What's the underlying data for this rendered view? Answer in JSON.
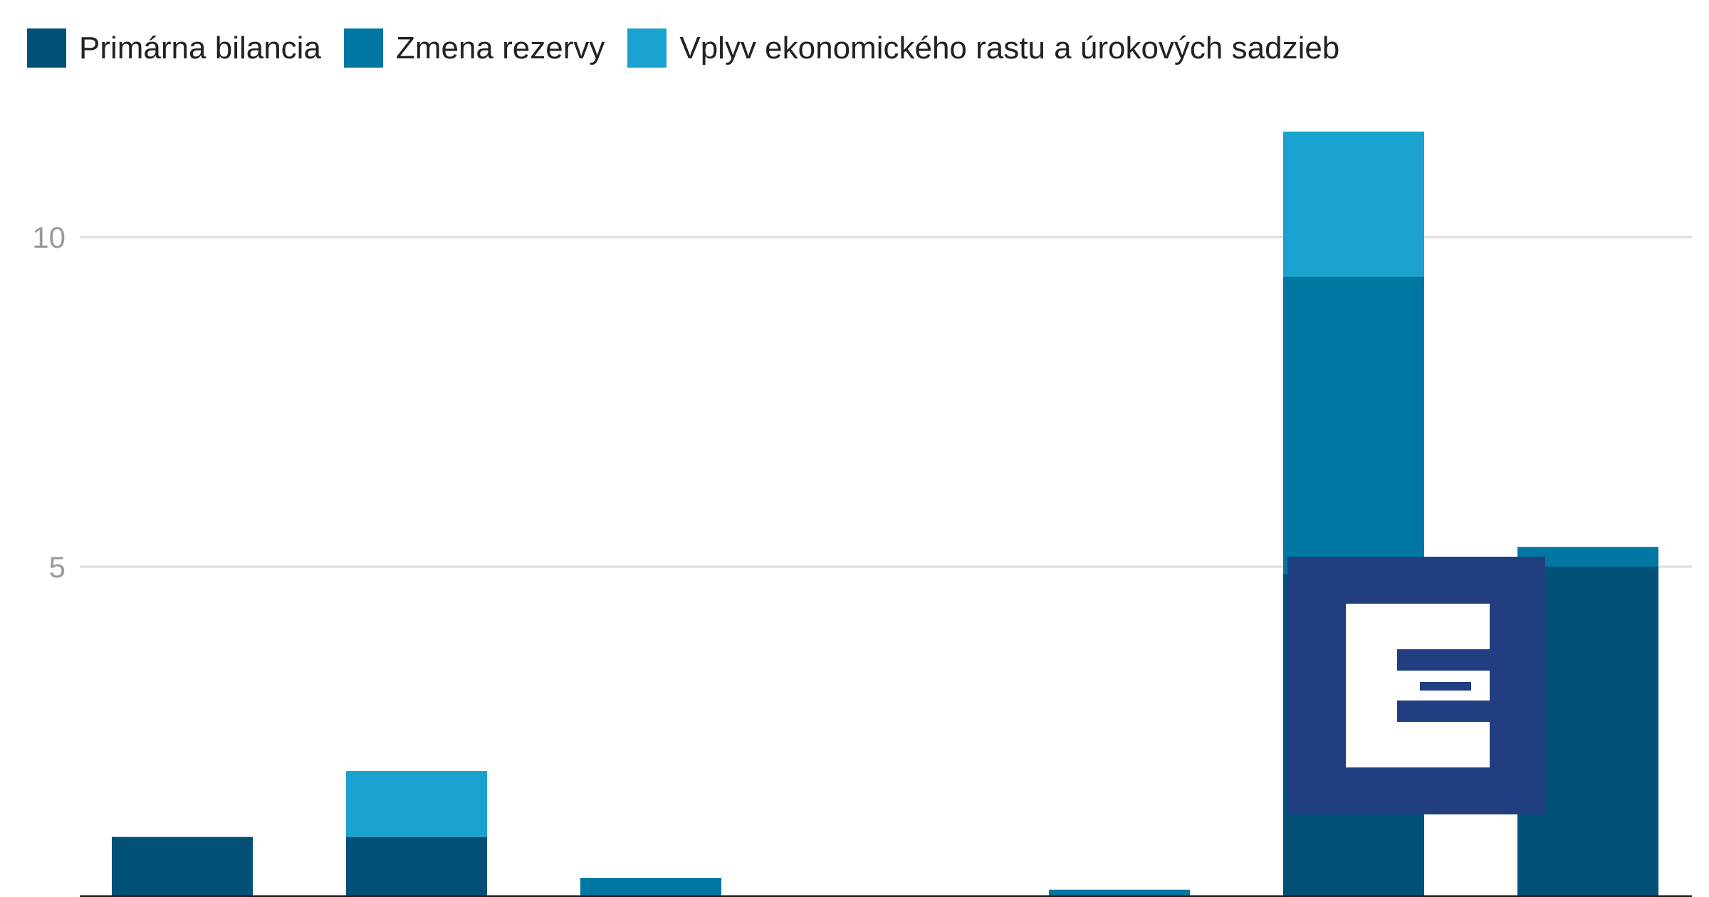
{
  "chart_data": {
    "type": "bar",
    "stacked": true,
    "categories": [
      "",
      "",
      "",
      "",
      "",
      "",
      ""
    ],
    "series": [
      {
        "name": "Primárna bilancia",
        "color": "#005078",
        "values": [
          0.9,
          0.9,
          0.0,
          -0.05,
          0.0,
          4.9,
          5.0
        ]
      },
      {
        "name": "Zmena rezervy",
        "color": "#0077a3",
        "values": [
          0.0,
          0.0,
          0.28,
          0.0,
          0.1,
          4.5,
          0.3
        ]
      },
      {
        "name": "Vplyv ekonomického rastu a úrokových sadzieb",
        "color": "#19a2cf",
        "values": [
          0.0,
          1.0,
          0.0,
          0.0,
          0.0,
          2.2,
          -0.1
        ]
      }
    ],
    "yticks": [
      5,
      10
    ],
    "ytick_labels": [
      "5",
      "10"
    ],
    "ylim": [
      -0.1,
      12.5
    ],
    "grid": true,
    "legend": "top-left"
  },
  "watermark": {
    "name": "logo-mark",
    "background": "#213f80",
    "foreground": "#ffffff"
  }
}
